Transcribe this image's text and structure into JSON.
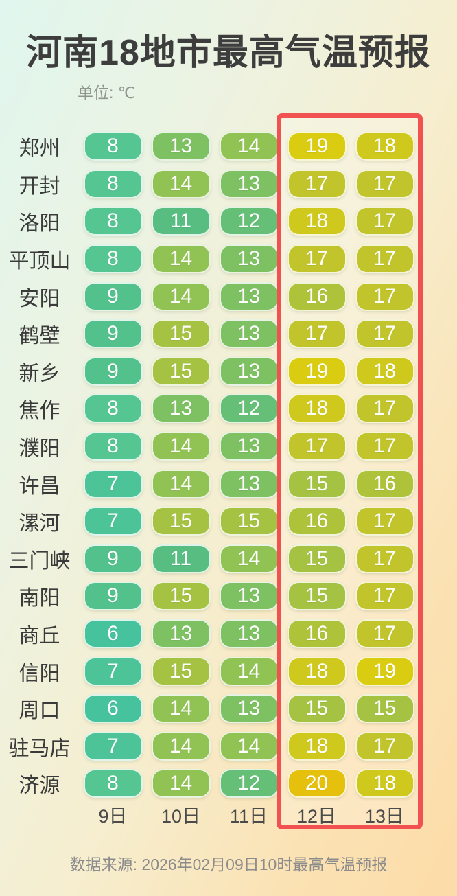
{
  "header": {
    "title": "河南18地市最高气温预报",
    "unit_label": "单位: ℃"
  },
  "footer": {
    "source": "数据来源: 2026年02月09日10时最高气温预报"
  },
  "colors": {
    "highlight_border": "#f15150",
    "highlight_fill": "rgba(255,255,255,0.22)",
    "temp_scale": {
      "6": "#46c29d",
      "7": "#4cc498",
      "8": "#55c591",
      "9": "#52c18b",
      "11": "#57bd80",
      "12": "#66bf77",
      "13": "#7dc163",
      "14": "#91c354",
      "15": "#a5c243",
      "16": "#aec33a",
      "17": "#c1c52b",
      "18": "#cfc91d",
      "19": "#dacc10",
      "20": "#e5c00d"
    }
  },
  "chart_data": {
    "type": "heatmap",
    "title": "河南18地市最高气温预报",
    "unit": "℃",
    "x_labels": [
      "9日",
      "10日",
      "11日",
      "12日",
      "13日"
    ],
    "y_labels": [
      "郑州",
      "开封",
      "洛阳",
      "平顶山",
      "安阳",
      "鹤壁",
      "新乡",
      "焦作",
      "濮阳",
      "许昌",
      "漯河",
      "三门峡",
      "南阳",
      "商丘",
      "信阳",
      "周口",
      "驻马店",
      "济源"
    ],
    "values": [
      [
        8,
        13,
        14,
        19,
        18
      ],
      [
        8,
        14,
        13,
        17,
        17
      ],
      [
        8,
        11,
        12,
        18,
        17
      ],
      [
        8,
        14,
        13,
        17,
        17
      ],
      [
        9,
        14,
        13,
        16,
        17
      ],
      [
        9,
        15,
        13,
        17,
        17
      ],
      [
        9,
        15,
        13,
        19,
        18
      ],
      [
        8,
        13,
        12,
        18,
        17
      ],
      [
        8,
        14,
        13,
        17,
        17
      ],
      [
        7,
        14,
        13,
        15,
        16
      ],
      [
        7,
        15,
        15,
        16,
        17
      ],
      [
        9,
        11,
        14,
        15,
        17
      ],
      [
        9,
        15,
        13,
        15,
        17
      ],
      [
        6,
        13,
        13,
        16,
        17
      ],
      [
        7,
        15,
        14,
        18,
        19
      ],
      [
        6,
        14,
        13,
        15,
        15
      ],
      [
        7,
        14,
        14,
        18,
        17
      ],
      [
        8,
        14,
        12,
        20,
        18
      ]
    ],
    "highlighted_columns": [
      "12日",
      "13日"
    ],
    "legend": "off",
    "grid": "off",
    "source": "数据来源: 2026年02月09日10时最高气温预报"
  }
}
